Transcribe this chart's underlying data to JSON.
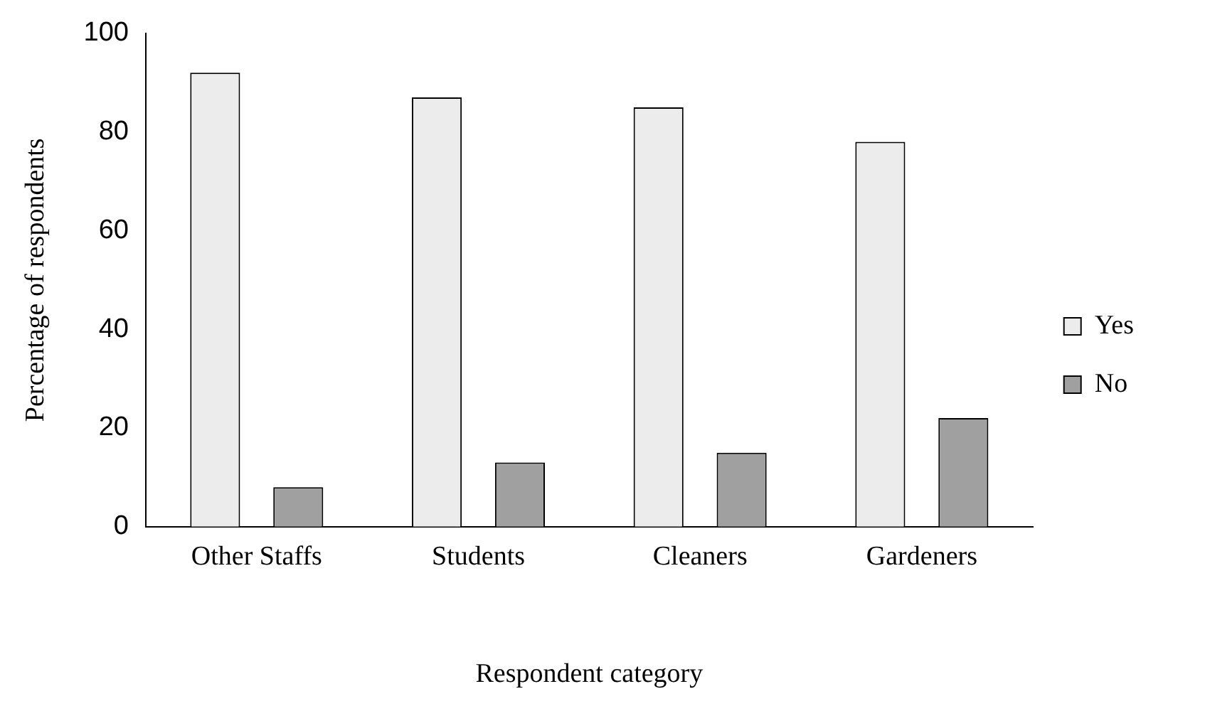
{
  "chart_data": {
    "type": "bar",
    "xlabel": "Respondent category",
    "ylabel": "Percentage of respondents",
    "categories": [
      "Other Staffs",
      "Students",
      "Cleaners",
      "Gardeners"
    ],
    "series": [
      {
        "name": "Yes",
        "color": "#ececec",
        "values": [
          92,
          87,
          85,
          78
        ]
      },
      {
        "name": "No",
        "color": "#a0a0a0",
        "values": [
          8,
          13,
          15,
          22
        ]
      }
    ],
    "ylim": [
      0,
      100
    ],
    "yticks": [
      0,
      20,
      40,
      60,
      80,
      100
    ],
    "grid": false,
    "legend": "right"
  }
}
